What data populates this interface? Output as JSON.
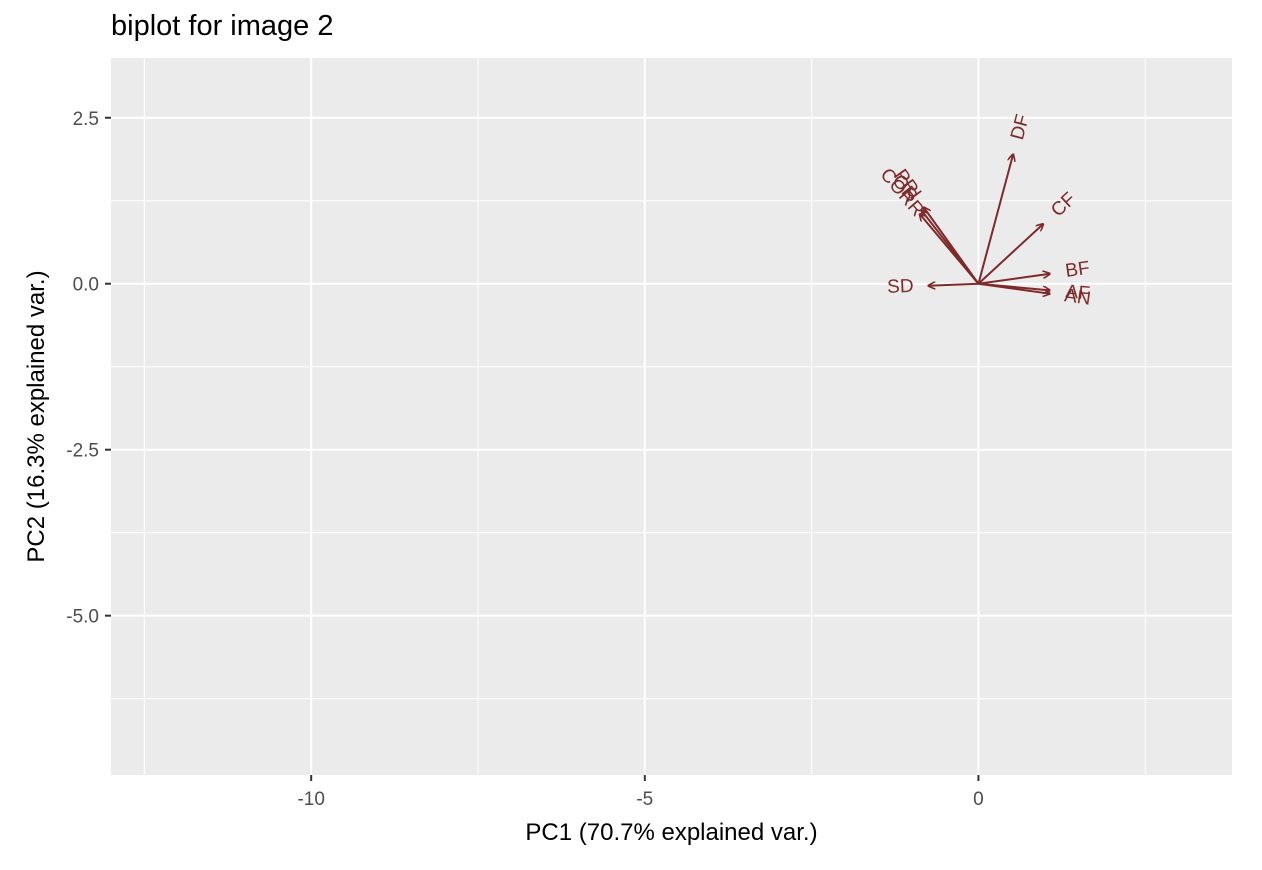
{
  "chart_data": {
    "type": "scatter",
    "subtype": "pca-biplot",
    "title": "biplot for image 2",
    "xlabel": "PC1 (70.7% explained var.)",
    "ylabel": "PC2 (16.3% explained var.)",
    "xlim": [
      -13.0,
      3.8
    ],
    "ylim": [
      -7.4,
      3.4
    ],
    "x_ticks": [
      -10,
      -5,
      0
    ],
    "x_tick_labels": [
      "-10",
      "-5",
      "0"
    ],
    "y_ticks": [
      2.5,
      0.0,
      -2.5,
      -5.0
    ],
    "y_tick_labels": [
      "2.5",
      "0.0",
      "-2.5",
      "-5.0"
    ],
    "grid": true,
    "background": "#ebebeb",
    "arrow_color": "#7f2a2a",
    "vectors": [
      {
        "name": "DF",
        "x": 0.52,
        "y": 1.95
      },
      {
        "name": "CF",
        "x": 0.97,
        "y": 0.9
      },
      {
        "name": "BF",
        "x": 1.07,
        "y": 0.15
      },
      {
        "name": "AF",
        "x": 1.07,
        "y": -0.1
      },
      {
        "name": "AN",
        "x": 1.07,
        "y": -0.15
      },
      {
        "name": "SD",
        "x": -0.75,
        "y": -0.03
      },
      {
        "name": "CORR",
        "x": -0.88,
        "y": 1.05
      },
      {
        "name": "OR",
        "x": -0.85,
        "y": 1.1
      },
      {
        "name": "PRI",
        "x": -0.82,
        "y": 1.15
      }
    ]
  }
}
